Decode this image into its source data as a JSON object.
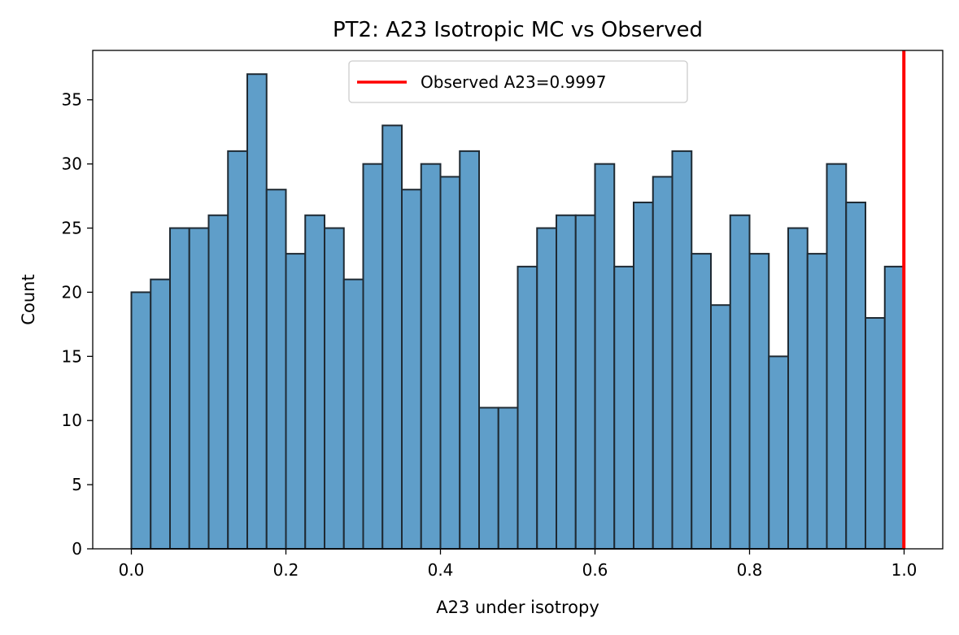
{
  "chart_data": {
    "type": "bar",
    "title": "PT2: A23 Isotropic MC vs Observed",
    "xlabel": "A23 under isotropy",
    "ylabel": "Count",
    "xlim": [
      -0.05,
      1.05
    ],
    "ylim": [
      0,
      38.85
    ],
    "x_ticks": [
      "0.0",
      "0.2",
      "0.4",
      "0.6",
      "0.8",
      "1.0"
    ],
    "y_ticks": [
      "0",
      "5",
      "10",
      "15",
      "20",
      "25",
      "30",
      "35"
    ],
    "bin_width": 0.025,
    "bin_start": 0.0,
    "values": [
      20,
      21,
      25,
      25,
      26,
      31,
      37,
      28,
      23,
      26,
      25,
      21,
      30,
      33,
      28,
      30,
      29,
      31,
      11,
      11,
      22,
      25,
      26,
      26,
      30,
      22,
      27,
      29,
      31,
      23,
      19,
      26,
      23,
      15,
      25,
      23,
      30,
      27,
      18,
      22
    ],
    "bar_color": "#5f9ec9",
    "bar_edge_color": "#1f2a33",
    "observed": {
      "value": 0.9997,
      "label": "Observed A23=0.9997",
      "color": "#ff0000"
    },
    "legend_position": "top-center",
    "grid": false
  }
}
